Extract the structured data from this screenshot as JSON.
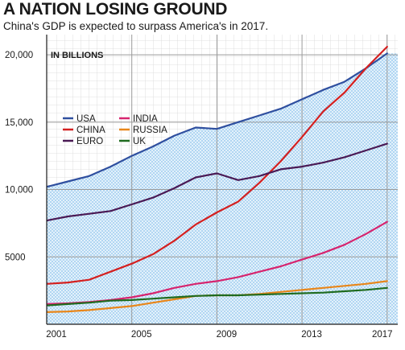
{
  "header": {
    "title": "A NATION LOSING GROUND",
    "subtitle": "China's GDP is expected to surpass America's in 2017."
  },
  "chart_data": {
    "type": "line",
    "title": "A NATION LOSING GROUND",
    "subtitle": "China's GDP is expected to surpass America's in 2017.",
    "unit_label": "IN BILLIONS",
    "xlabel": "",
    "ylabel": "",
    "x": [
      2001,
      2002,
      2003,
      2004,
      2005,
      2006,
      2007,
      2008,
      2009,
      2010,
      2011,
      2012,
      2013,
      2014,
      2015,
      2016,
      2017
    ],
    "xlim": [
      2001,
      2017.5
    ],
    "ylim": [
      0,
      21500
    ],
    "x_ticks": [
      2001,
      2005,
      2009,
      2013,
      2017
    ],
    "x_tick_labels": [
      "2001",
      "2005",
      "2009",
      "2013",
      "2017"
    ],
    "y_ticks": [
      5000,
      10000,
      15000,
      20000
    ],
    "y_tick_labels": [
      "5000",
      "10,000",
      "15,000",
      "20,000"
    ],
    "grid": true,
    "legend_position": "top-left",
    "series": [
      {
        "name": "USA",
        "color": "#2f4f9f",
        "fill": "#cfe8f7",
        "values": [
          10200,
          10600,
          11000,
          11700,
          12500,
          13200,
          14000,
          14600,
          14500,
          15000,
          15500,
          16000,
          16700,
          17400,
          18000,
          19000,
          20100
        ]
      },
      {
        "name": "CHINA",
        "color": "#d42020",
        "values": [
          3000,
          3100,
          3300,
          3900,
          4500,
          5200,
          6200,
          7400,
          8300,
          9100,
          10500,
          12100,
          13900,
          15800,
          17200,
          19000,
          20600
        ]
      },
      {
        "name": "EURO",
        "color": "#4a1a55",
        "values": [
          7700,
          8000,
          8200,
          8400,
          8900,
          9400,
          10100,
          10900,
          11200,
          10700,
          11000,
          11500,
          11700,
          12000,
          12400,
          12900,
          13400
        ]
      },
      {
        "name": "INDIA",
        "color": "#d6246e",
        "values": [
          1500,
          1550,
          1650,
          1800,
          2000,
          2300,
          2700,
          3000,
          3200,
          3500,
          3900,
          4300,
          4800,
          5300,
          5900,
          6700,
          7600
        ]
      },
      {
        "name": "RUSSIA",
        "color": "#e8861a",
        "values": [
          900,
          950,
          1050,
          1200,
          1350,
          1600,
          1850,
          2100,
          2150,
          2150,
          2250,
          2400,
          2550,
          2700,
          2850,
          3000,
          3200
        ]
      },
      {
        "name": "UK",
        "color": "#1f6b1f",
        "values": [
          1400,
          1500,
          1600,
          1750,
          1800,
          1900,
          2000,
          2100,
          2150,
          2150,
          2200,
          2250,
          2300,
          2350,
          2450,
          2550,
          2700
        ]
      }
    ]
  }
}
